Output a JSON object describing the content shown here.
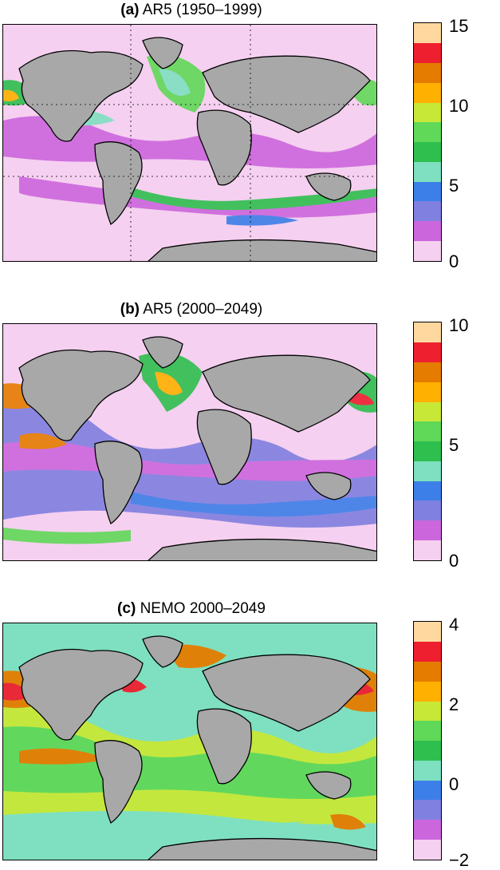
{
  "palette": [
    "#f5d0f0",
    "#cc66dd",
    "#8080e0",
    "#3d7fe8",
    "#7ee0c0",
    "#2fbf4f",
    "#60d858",
    "#c8e838",
    "#ffb000",
    "#e57c00",
    "#ee2030",
    "#ffd8a0"
  ],
  "land_color": "#a8a8a8",
  "panels": [
    {
      "label": "(a)",
      "title": "AR5 (1950–1999)",
      "ticks": [
        "15",
        "10",
        "5",
        "0"
      ],
      "ocean_base": "#f5d0f0"
    },
    {
      "label": "(b)",
      "title": "AR5 (2000–2049)",
      "ticks": [
        "10",
        "5",
        "0"
      ],
      "ocean_base": "#f5d0f0"
    },
    {
      "label": "(c)",
      "title": "NEMO 2000–2049",
      "ticks": [
        "4",
        "2",
        "0",
        "−2"
      ],
      "ocean_base": "#7ee0c0"
    }
  ]
}
